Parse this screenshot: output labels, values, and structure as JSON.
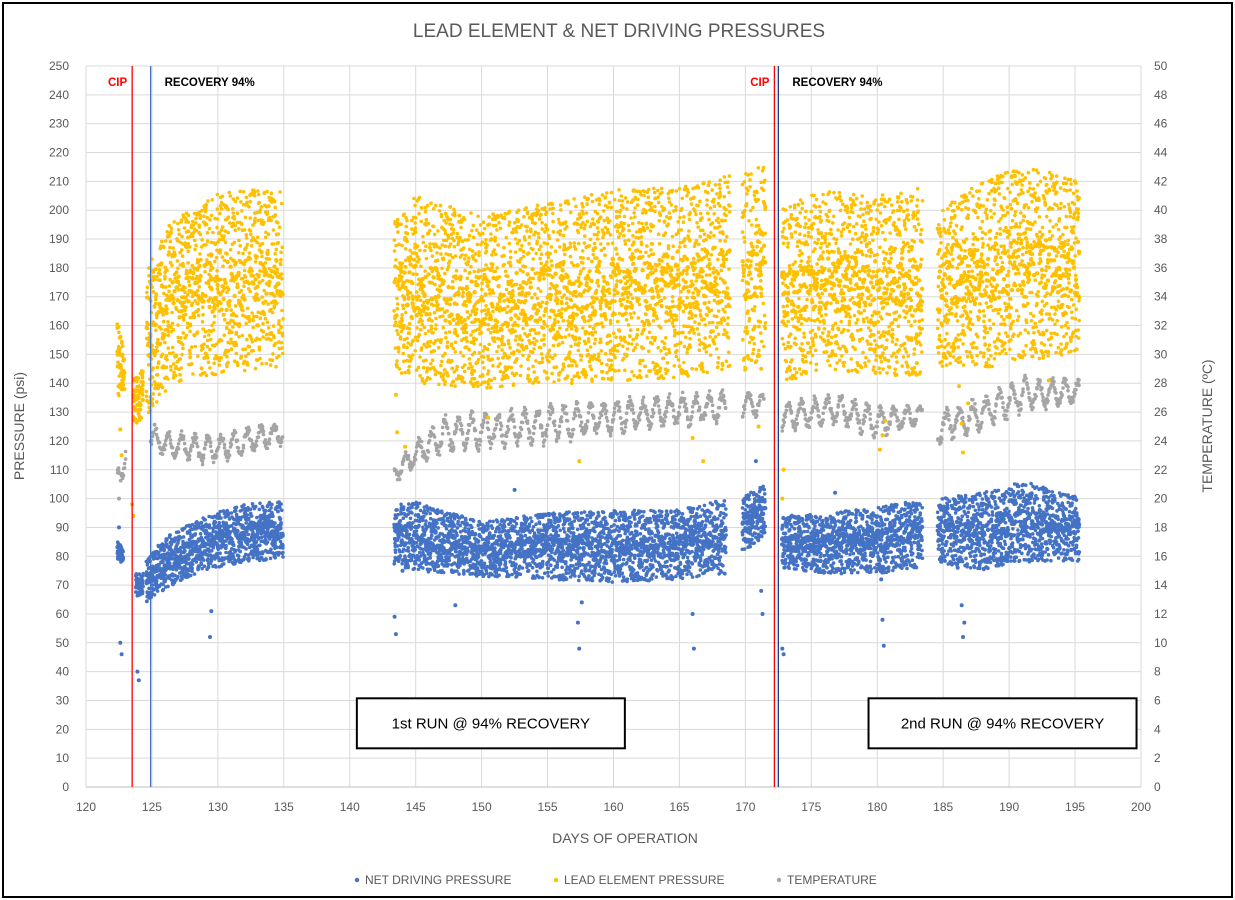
{
  "chart_data": {
    "type": "scatter",
    "title": "LEAD ELEMENT & NET DRIVING PRESSURES",
    "xlabel": "DAYS OF OPERATION",
    "ylabel": "PRESSURE (psi)",
    "y2label": "TEMPERATURE (ºC)",
    "xlim": [
      120,
      200
    ],
    "ylim": [
      0,
      250
    ],
    "y2lim": [
      0,
      50
    ],
    "x_ticks": [
      "120",
      "125",
      "130",
      "135",
      "140",
      "145",
      "150",
      "155",
      "160",
      "165",
      "170",
      "175",
      "180",
      "185",
      "190",
      "195",
      "200"
    ],
    "y_ticks": [
      "0",
      "10",
      "20",
      "30",
      "40",
      "50",
      "60",
      "70",
      "80",
      "90",
      "100",
      "110",
      "120",
      "130",
      "140",
      "150",
      "160",
      "170",
      "180",
      "190",
      "200",
      "210",
      "220",
      "230",
      "240",
      "250"
    ],
    "y2_ticks": [
      "0",
      "2",
      "4",
      "6",
      "8",
      "10",
      "12",
      "14",
      "16",
      "18",
      "20",
      "22",
      "24",
      "26",
      "28",
      "30",
      "32",
      "34",
      "36",
      "38",
      "40",
      "42",
      "44",
      "46",
      "48",
      "50"
    ],
    "grid": true,
    "legend_position": "bottom",
    "series": [
      {
        "name": "NET DRIVING PRESSURE",
        "axis": "left",
        "color": "#4472C4",
        "segments": [
          {
            "x": [
              122.4,
              122.8
            ],
            "low": [
              78,
              78
            ],
            "high": [
              86,
              82
            ]
          },
          {
            "x": [
              123.8,
              124.3
            ],
            "low": [
              66,
              67
            ],
            "high": [
              74,
              74
            ]
          },
          {
            "x": [
              124.6,
              126.5,
              129.0,
              132.0,
              134.9
            ],
            "low": [
              64,
              70,
              75,
              78,
              79
            ],
            "high": [
              80,
              88,
              94,
              98,
              99
            ]
          },
          {
            "x": [
              143.4,
              145.0,
              150.0,
              155.0,
              160.0,
              165.0,
              168.5
            ],
            "low": [
              77,
              75,
              73,
              72,
              71,
              72,
              74
            ],
            "high": [
              98,
              99,
              92,
              95,
              96,
              96,
              100
            ]
          },
          {
            "x": [
              169.8,
              171.5
            ],
            "low": [
              82,
              86
            ],
            "high": [
              100,
              106
            ]
          },
          {
            "x": [
              172.8,
              176.0,
              180.0,
              183.4
            ],
            "low": [
              76,
              74,
              74,
              76
            ],
            "high": [
              94,
              95,
              97,
              100
            ]
          },
          {
            "x": [
              184.6,
              188.0,
              191.0,
              195.3
            ],
            "low": [
              78,
              75,
              78,
              78
            ],
            "high": [
              100,
              102,
              106,
              101
            ]
          }
        ],
        "outliers": [
          [
            122.5,
            90
          ],
          [
            122.6,
            50
          ],
          [
            122.7,
            46
          ],
          [
            123.9,
            40
          ],
          [
            124.0,
            37
          ],
          [
            129.5,
            61
          ],
          [
            129.4,
            52
          ],
          [
            143.4,
            59
          ],
          [
            143.5,
            53
          ],
          [
            144.0,
            75
          ],
          [
            148.0,
            63
          ],
          [
            152.5,
            103
          ],
          [
            157.3,
            57
          ],
          [
            157.4,
            48
          ],
          [
            157.6,
            64
          ],
          [
            166.0,
            60
          ],
          [
            166.1,
            48
          ],
          [
            170.8,
            113
          ],
          [
            171.2,
            68
          ],
          [
            171.3,
            60
          ],
          [
            172.8,
            48
          ],
          [
            172.9,
            46
          ],
          [
            176.8,
            102
          ],
          [
            180.4,
            58
          ],
          [
            180.5,
            49
          ],
          [
            180.3,
            72
          ],
          [
            186.4,
            63
          ],
          [
            186.5,
            52
          ],
          [
            186.6,
            57
          ],
          [
            186.1,
            76
          ]
        ]
      },
      {
        "name": "LEAD ELEMENT PRESSURE",
        "axis": "left",
        "color": "#FFC000",
        "segments": [
          {
            "x": [
              122.4,
              122.9
            ],
            "low": [
              135,
              138
            ],
            "high": [
              162,
              150
            ]
          },
          {
            "x": [
              123.6,
              124.3
            ],
            "low": [
              125,
              128
            ],
            "high": [
              142,
              145
            ]
          },
          {
            "x": [
              124.6,
              126.5,
              130.0,
              134.9
            ],
            "low": [
              128,
              140,
              143,
              146
            ],
            "high": [
              180,
              196,
              206,
              208
            ]
          },
          {
            "x": [
              143.4,
              145.0,
              150.0,
              155.0,
              160.0,
              165.0,
              168.8
            ],
            "low": [
              145,
              140,
              138,
              140,
              140,
              142,
              145
            ],
            "high": [
              196,
              205,
              198,
              203,
              207,
              208,
              212
            ]
          },
          {
            "x": [
              169.8,
              171.5
            ],
            "low": [
              143,
              150
            ],
            "high": [
              213,
              216
            ]
          },
          {
            "x": [
              172.8,
              176.0,
              180.0,
              183.4
            ],
            "low": [
              140,
              145,
              143,
              142
            ],
            "high": [
              201,
              207,
              205,
              208
            ]
          },
          {
            "x": [
              184.6,
              188.0,
              191.0,
              195.3
            ],
            "low": [
              146,
              145,
              148,
              150
            ],
            "high": [
              200,
              210,
              216,
              210
            ]
          }
        ],
        "outliers": [
          [
            123.5,
            98
          ],
          [
            123.6,
            94
          ],
          [
            122.6,
            124
          ],
          [
            122.7,
            115
          ],
          [
            143.5,
            136
          ],
          [
            143.6,
            123
          ],
          [
            144.2,
            118
          ],
          [
            150.5,
            128
          ],
          [
            157.4,
            113
          ],
          [
            166.0,
            121
          ],
          [
            166.8,
            113
          ],
          [
            171.0,
            125
          ],
          [
            171.2,
            145
          ],
          [
            172.8,
            100
          ],
          [
            172.9,
            110
          ],
          [
            180.2,
            117
          ],
          [
            180.4,
            122
          ],
          [
            180.6,
            127
          ],
          [
            183.0,
            147
          ],
          [
            186.2,
            139
          ],
          [
            186.4,
            126
          ],
          [
            186.5,
            116
          ],
          [
            186.9,
            133
          ],
          [
            193.0,
            141
          ]
        ]
      },
      {
        "name": "TEMPERATURE",
        "axis": "right",
        "color": "#A5A5A5",
        "segments": [
          {
            "x": [
              122.4,
              123.0
            ],
            "low": [
              20.5,
              21.5
            ],
            "high": [
              22.5,
              24.5
            ]
          },
          {
            "x": [
              124.9,
              126.0,
              129.0,
              132.0,
              134.9
            ],
            "low": [
              23.0,
              22.8,
              22.2,
              22.8,
              23.6
            ],
            "high": [
              25.4,
              24.8,
              24.6,
              25.0,
              25.6
            ]
          },
          {
            "x": [
              143.4,
              147.0,
              151.0,
              155.0,
              159.0,
              163.0,
              168.5
            ],
            "low": [
              21.0,
              23.0,
              23.4,
              23.6,
              24.2,
              24.8,
              25.0
            ],
            "high": [
              22.6,
              26.0,
              26.2,
              26.6,
              27.0,
              27.3,
              27.6
            ]
          },
          {
            "x": [
              169.8,
              171.4
            ],
            "low": [
              25.6,
              25.6
            ],
            "high": [
              27.6,
              27.4
            ]
          },
          {
            "x": [
              172.8,
              177.0,
              180.0,
              183.4
            ],
            "low": [
              24.6,
              25.0,
              24.0,
              25.2
            ],
            "high": [
              26.8,
              27.4,
              26.6,
              26.6
            ]
          },
          {
            "x": [
              184.6,
              188.0,
              191.0,
              195.3
            ],
            "low": [
              23.6,
              24.6,
              25.8,
              26.6
            ],
            "high": [
              26.2,
              27.2,
              28.6,
              28.4
            ]
          }
        ],
        "outliers": [
          [
            122.5,
            20.0
          ]
        ]
      }
    ],
    "annotations": [
      {
        "type": "vline",
        "x": 123.5,
        "color": "#FF0000",
        "label": "CIP"
      },
      {
        "type": "vline",
        "x": 124.9,
        "color": "#4472C4",
        "label": "RECOVERY 94%"
      },
      {
        "type": "vline",
        "x": 172.2,
        "color": "#FF0000",
        "label": "CIP"
      },
      {
        "type": "vline",
        "x": 172.5,
        "color": "#1F3A8A",
        "label": "RECOVERY 94%"
      },
      {
        "type": "textbox",
        "text": "1st RUN @ 94% RECOVERY",
        "x": 150.7,
        "y": 20
      },
      {
        "type": "textbox",
        "text": "2nd RUN @ 94% RECOVERY",
        "x": 189.5,
        "y": 20
      }
    ]
  }
}
